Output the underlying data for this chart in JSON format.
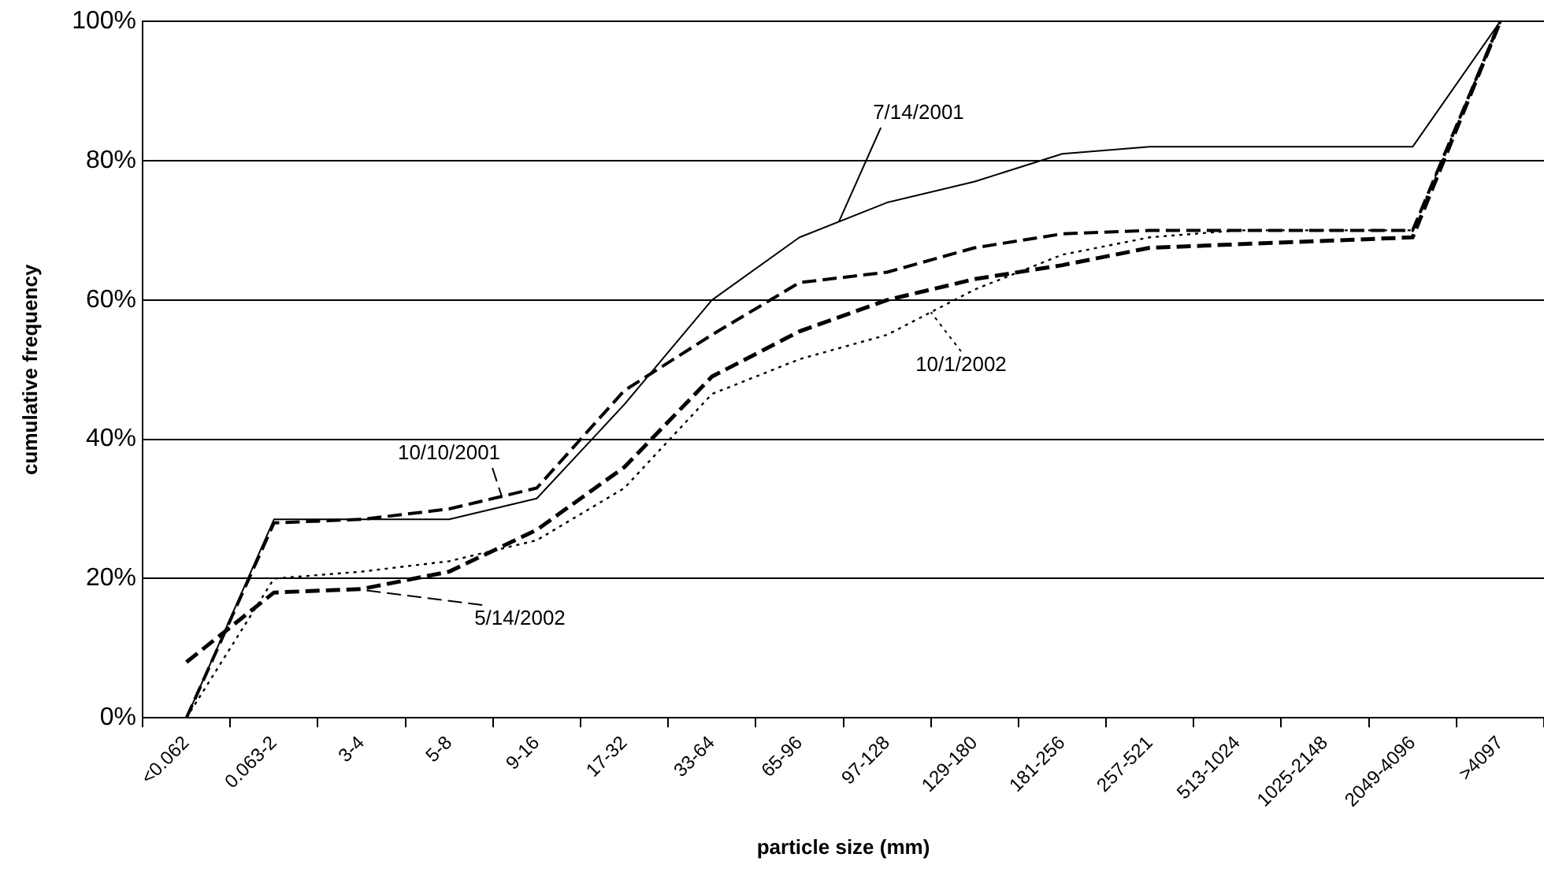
{
  "chart_data": {
    "type": "line",
    "xlabel": "particle size (mm)",
    "ylabel": "cumulative frequency",
    "categories": [
      "<0.062",
      "0.063-2",
      "3-4",
      "5-8",
      "9-16",
      "17-32",
      "33-64",
      "65-96",
      "97-128",
      "129-180",
      "181-256",
      "257-521",
      "513-1024",
      "1025-2148",
      "2049-4096",
      ">4097"
    ],
    "series": [
      {
        "name": "7/14/2001",
        "color": "#000000",
        "line_style": "solid",
        "values": [
          0,
          28.5,
          28.5,
          28.5,
          31.5,
          45,
          60,
          69,
          74,
          77,
          81,
          82,
          82,
          82,
          82,
          100
        ]
      },
      {
        "name": "10/10/2001",
        "color": "#000000",
        "line_style": "dashed",
        "values": [
          0,
          28,
          28.5,
          30,
          33,
          47,
          55,
          62.5,
          64,
          67.5,
          69.5,
          70,
          70,
          70,
          70,
          100
        ]
      },
      {
        "name": "10/1/2002",
        "color": "#000000",
        "line_style": "dotted",
        "values": [
          0,
          20,
          21,
          22.5,
          25.5,
          33,
          46.5,
          51.5,
          55,
          61.5,
          66.5,
          69,
          70,
          70,
          70,
          100
        ]
      },
      {
        "name": "5/14/2002",
        "color": "#000000",
        "line_style": "dashed",
        "values": [
          8,
          18,
          18.5,
          21,
          27,
          36,
          49,
          55.5,
          60,
          63,
          65,
          67.5,
          68,
          68.5,
          69,
          100
        ]
      }
    ],
    "ylim": [
      0,
      100
    ],
    "yticks": [
      {
        "value": 0,
        "label": "0%"
      },
      {
        "value": 20,
        "label": "20%"
      },
      {
        "value": 40,
        "label": "40%"
      },
      {
        "value": 60,
        "label": "60%"
      },
      {
        "value": 80,
        "label": "80%"
      },
      {
        "value": 100,
        "label": "100%"
      }
    ],
    "grid": "y",
    "marker": "none"
  }
}
